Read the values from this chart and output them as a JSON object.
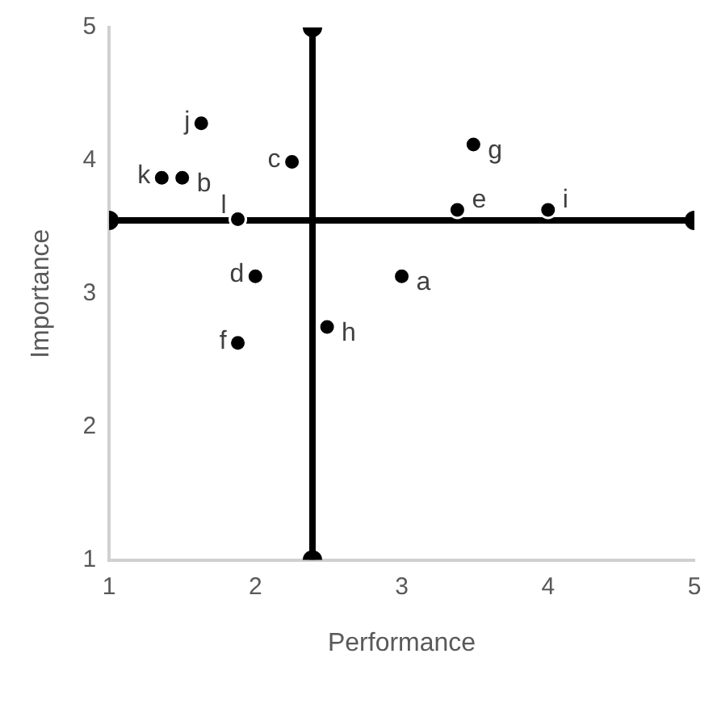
{
  "chart_data": {
    "type": "scatter",
    "xlabel": "Performance",
    "ylabel": "Importance",
    "xlim": [
      1,
      5
    ],
    "xticks": [
      1,
      2,
      3,
      4,
      5
    ],
    "ylim": [
      1,
      5
    ],
    "yticks": [
      1,
      2,
      3,
      4,
      5
    ],
    "grid": false,
    "legend": false,
    "marker": "circle",
    "series": [
      {
        "type": "line",
        "color": "#000000",
        "x": [
          1,
          5
        ],
        "values": [
          3.55,
          3.55
        ]
      },
      {
        "type": "line",
        "color": "#000000",
        "x": [
          2.39,
          2.39
        ],
        "values": [
          1,
          5
        ]
      },
      {
        "color": "#000000",
        "x": [
          3.0,
          1.5,
          2.25,
          2.0,
          3.38,
          1.88,
          3.49,
          2.49,
          4.0,
          1.63,
          1.36,
          1.88
        ],
        "values": [
          3.13,
          3.87,
          3.99,
          3.13,
          3.63,
          2.63,
          4.12,
          2.75,
          3.63,
          4.28,
          3.87,
          3.56
        ]
      }
    ],
    "annotations": [
      {
        "text": "a",
        "x": 3.0,
        "y": 3.13
      },
      {
        "text": "b",
        "x": 1.5,
        "y": 3.87
      },
      {
        "text": "c",
        "x": 2.25,
        "y": 3.99
      },
      {
        "text": "d",
        "x": 2.0,
        "y": 3.13
      },
      {
        "text": "e",
        "x": 3.38,
        "y": 3.63
      },
      {
        "text": "f",
        "x": 1.88,
        "y": 2.63
      },
      {
        "text": "g",
        "x": 3.49,
        "y": 4.12
      },
      {
        "text": "h",
        "x": 2.49,
        "y": 2.75
      },
      {
        "text": "i",
        "x": 4.0,
        "y": 3.63
      },
      {
        "text": "j",
        "x": 1.63,
        "y": 4.28
      },
      {
        "text": "k",
        "x": 1.36,
        "y": 3.87
      },
      {
        "text": "l",
        "x": 1.88,
        "y": 3.56
      }
    ]
  }
}
